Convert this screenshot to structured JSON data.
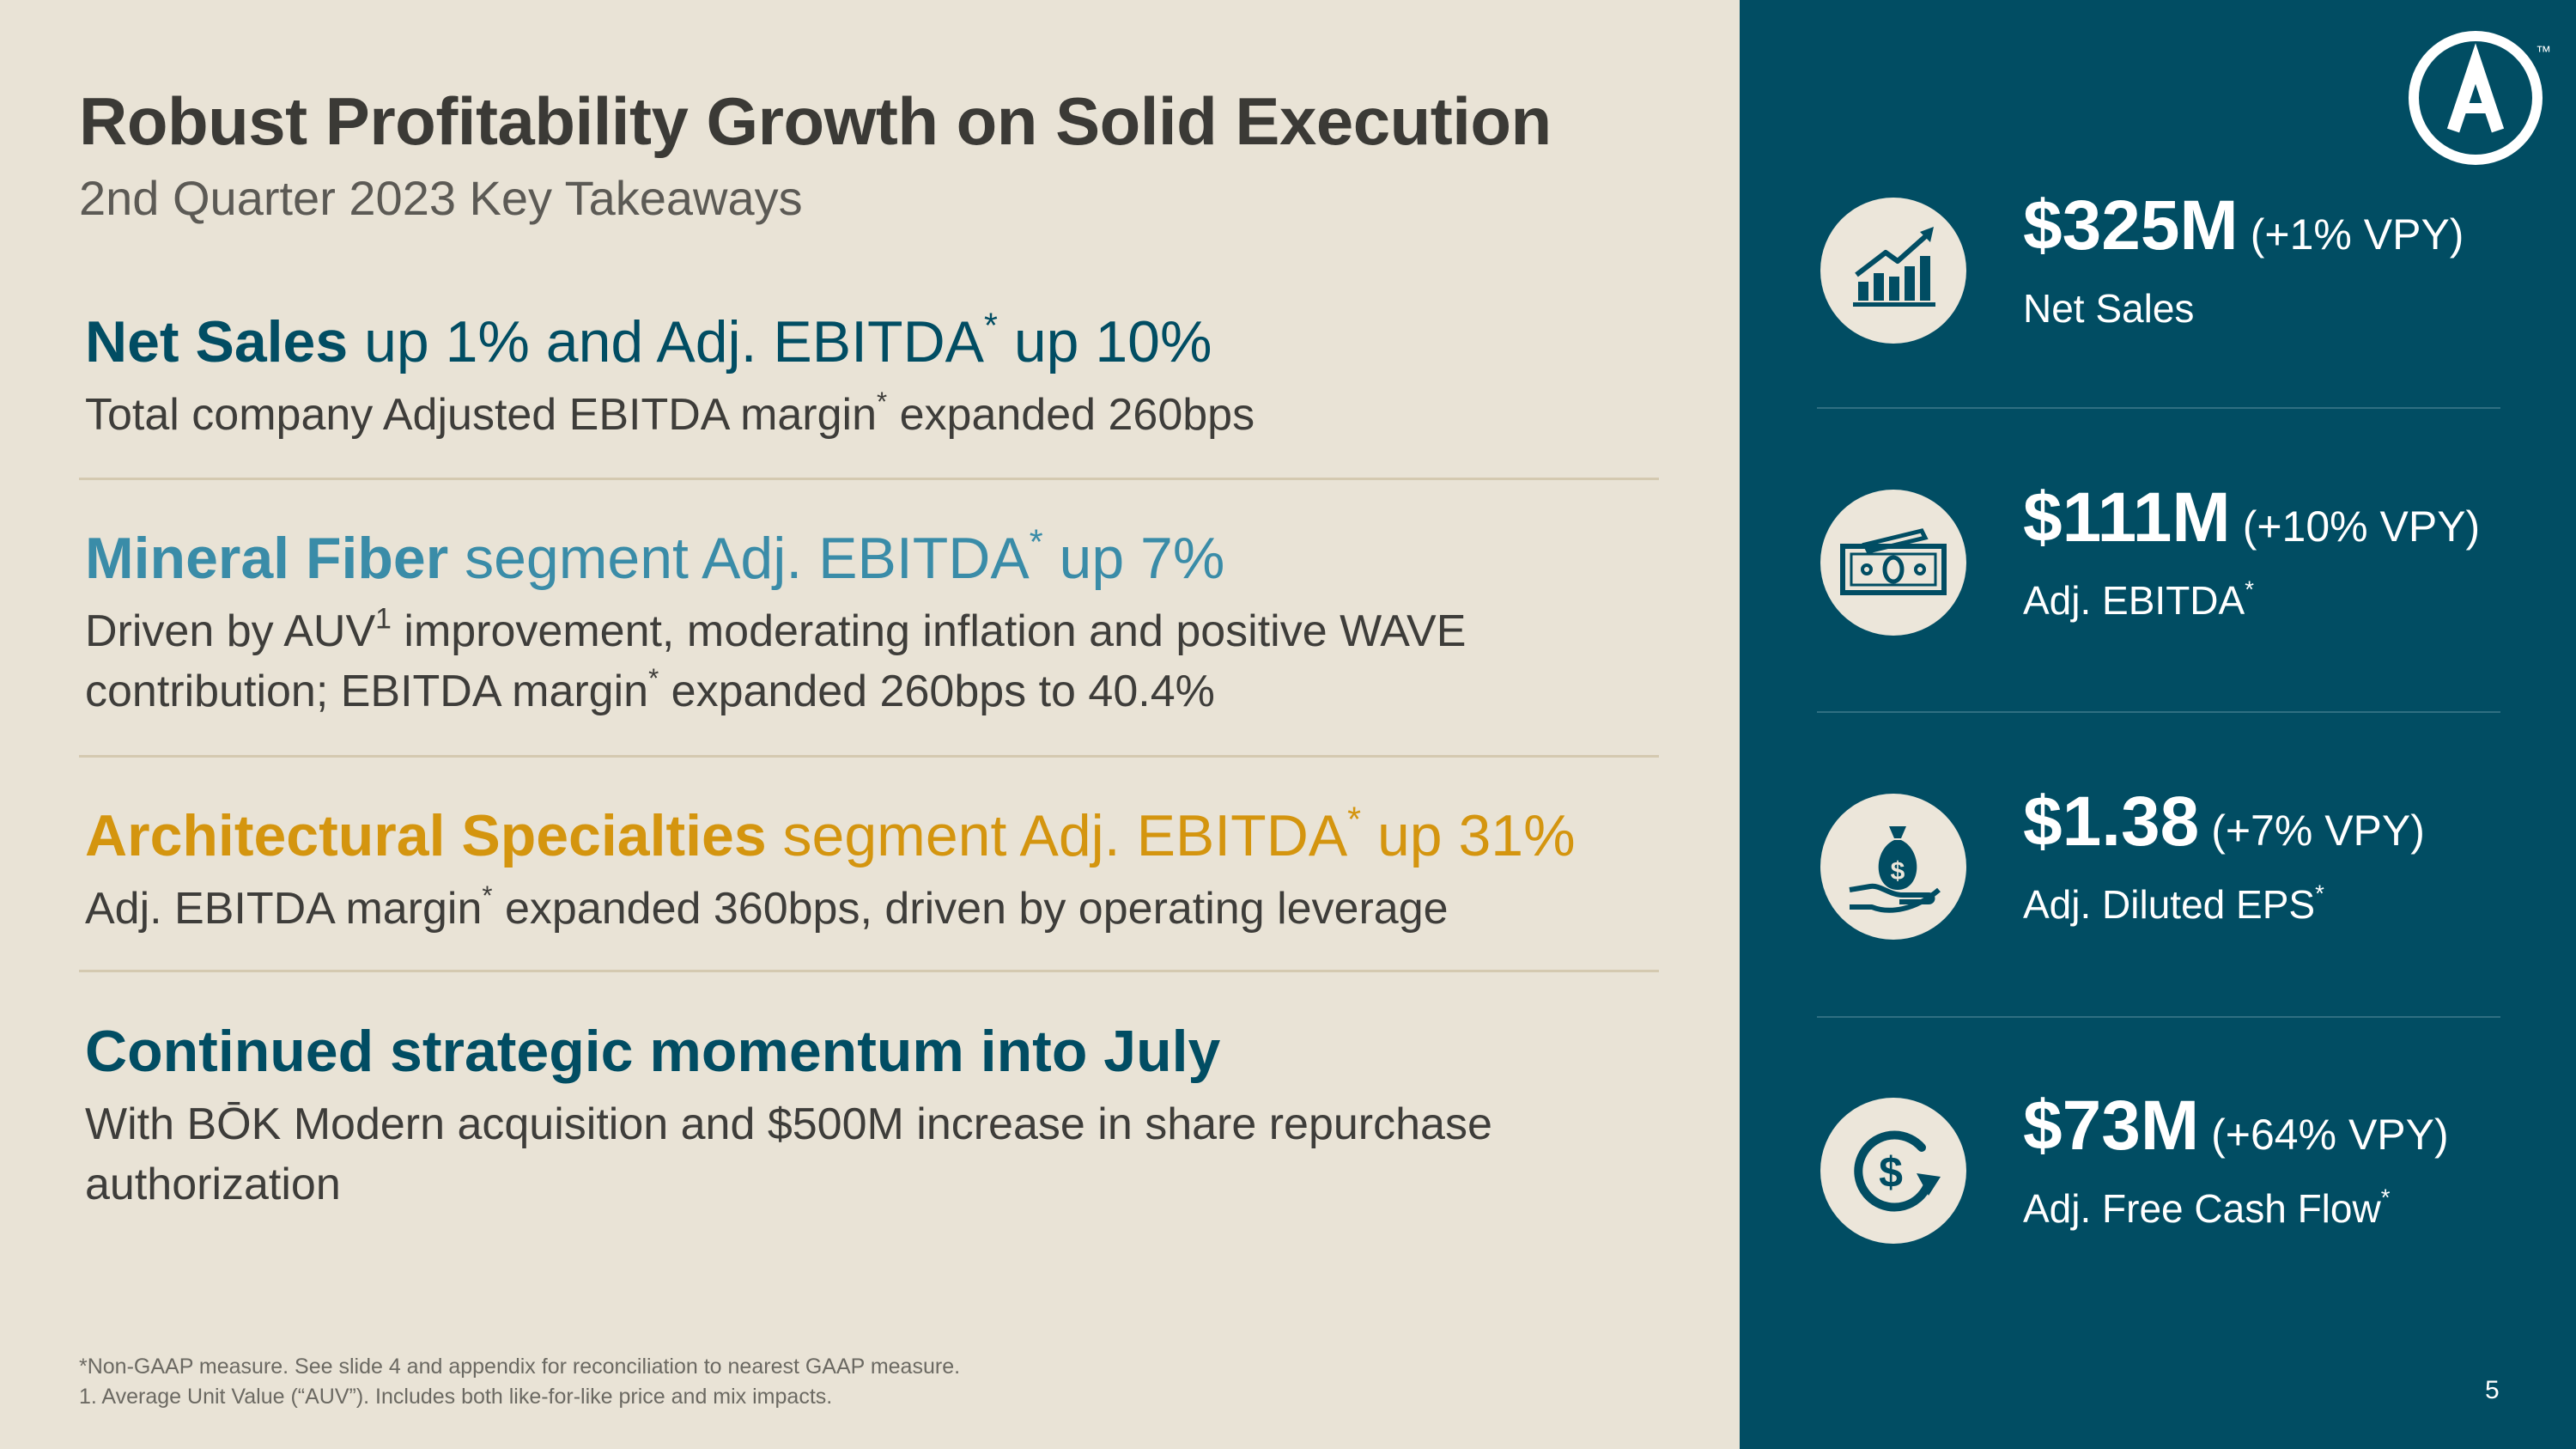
{
  "header": {
    "title": "Robust Profitability Growth on Solid Execution",
    "subtitle": "2nd Quarter 2023 Key Takeaways"
  },
  "takeaways": [
    {
      "head_bold": "Net Sales",
      "head_rest_a": " up 1% and Adj. EBITDA",
      "head_rest_b": " up 10%",
      "body_a": "Total company Adjusted EBITDA margin",
      "body_b": " expanded 260bps"
    },
    {
      "head_bold": "Mineral Fiber",
      "head_rest_a": " segment Adj. EBITDA",
      "head_rest_b": " up 7%",
      "body_line1_a": "Driven by AUV",
      "body_line1_b": " improvement, moderating inflation and positive WAVE",
      "body_line2_a": "contribution; EBITDA margin",
      "body_line2_b": " expanded 260bps to 40.4%"
    },
    {
      "head_bold": "Architectural Specialties",
      "head_rest_a": " segment Adj. EBITDA",
      "head_rest_b": " up 31%",
      "body_a": "Adj. EBITDA margin",
      "body_b": " expanded 360bps, driven by operating leverage"
    },
    {
      "head_bold": "Continued strategic momentum into July",
      "body_line1": "With BŌK Modern acquisition and $500M increase in share repurchase",
      "body_line2": "authorization"
    }
  ],
  "marks": {
    "asterisk": "*",
    "one": "1"
  },
  "footnotes": [
    "*Non-GAAP measure. See slide 4 and appendix for reconciliation to nearest GAAP measure.",
    "1. Average Unit Value (“AUV”). Includes both like-for-like price and mix impacts."
  ],
  "metrics": [
    {
      "value": "$325M",
      "change": "(+1% VPY)",
      "label": "Net Sales",
      "asterisk": "",
      "icon": "growth-chart-icon"
    },
    {
      "value": "$111M",
      "change": "(+10% VPY)",
      "label": "Adj. EBITDA",
      "asterisk": "*",
      "icon": "cash-bills-icon"
    },
    {
      "value": "$1.38",
      "change": "(+7% VPY)",
      "label": "Adj. Diluted EPS",
      "asterisk": "*",
      "icon": "money-bag-hand-icon"
    },
    {
      "value": "$73M",
      "change": "(+64% VPY)",
      "label": "Adj. Free Cash Flow",
      "asterisk": "*",
      "icon": "dollar-cycle-icon"
    }
  ],
  "page_number": "5",
  "logo": {
    "letter": "A",
    "mark": "™"
  },
  "colors": {
    "teal": "#014d63",
    "blue": "#3a8ca8",
    "gold": "#d4950f",
    "background": "#e9e3d6"
  }
}
